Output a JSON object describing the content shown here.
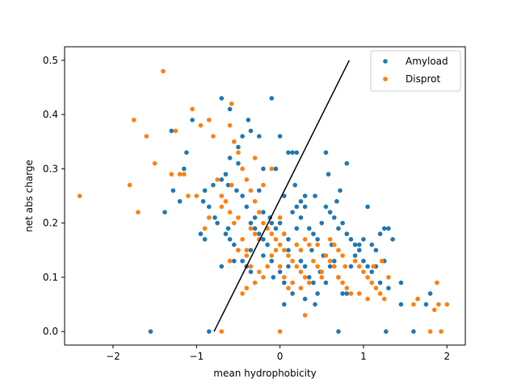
{
  "chart_data": {
    "type": "scatter",
    "xlabel": "mean hydrophobicity",
    "ylabel": "net abs charge",
    "xlim": [
      -2.58,
      2.22
    ],
    "ylim": [
      -0.025,
      0.525
    ],
    "xticks": [
      -2,
      -1,
      0,
      1,
      2
    ],
    "xtick_labels": [
      "−2",
      "−1",
      "0",
      "1",
      "2"
    ],
    "yticks": [
      0.0,
      0.1,
      0.2,
      0.3,
      0.4,
      0.5
    ],
    "ytick_labels": [
      "0.0",
      "0.1",
      "0.2",
      "0.3",
      "0.4",
      "0.5"
    ],
    "grid": false,
    "legend_position": "top-right",
    "decision_line": {
      "x": [
        -0.79,
        0.83
      ],
      "y": [
        0.0,
        0.5
      ],
      "color": "#000000"
    },
    "series": [
      {
        "name": "Amyload",
        "color": "#1f77b4",
        "points": [
          [
            -0.7,
            0.43
          ],
          [
            -0.6,
            0.41
          ],
          [
            -0.38,
            0.39
          ],
          [
            -0.1,
            0.43
          ],
          [
            -1.05,
            0.39
          ],
          [
            -1.3,
            0.37
          ],
          [
            -1.38,
            0.22
          ],
          [
            -1.28,
            0.26
          ],
          [
            -1.2,
            0.24
          ],
          [
            -1.15,
            0.3
          ],
          [
            -1.12,
            0.33
          ],
          [
            -0.55,
            0.35
          ],
          [
            -0.5,
            0.34
          ],
          [
            -0.6,
            0.32
          ],
          [
            -0.65,
            0.29
          ],
          [
            -0.62,
            0.27
          ],
          [
            -0.52,
            0.26
          ],
          [
            -0.45,
            0.25
          ],
          [
            -0.7,
            0.28
          ],
          [
            -0.8,
            0.27
          ],
          [
            -0.9,
            0.26
          ],
          [
            -0.92,
            0.24
          ],
          [
            -0.85,
            0.23
          ],
          [
            -0.78,
            0.21
          ],
          [
            -0.95,
            0.18
          ],
          [
            -0.9,
            0.17
          ],
          [
            -0.75,
            0.2
          ],
          [
            -0.65,
            0.18
          ],
          [
            -0.6,
            0.17
          ],
          [
            -0.55,
            0.16
          ],
          [
            -0.5,
            0.15
          ],
          [
            -0.45,
            0.13
          ],
          [
            -0.4,
            0.12
          ],
          [
            -0.35,
            0.11
          ],
          [
            -0.3,
            0.19
          ],
          [
            -0.25,
            0.18
          ],
          [
            -0.2,
            0.17
          ],
          [
            -0.15,
            0.16
          ],
          [
            -0.1,
            0.2
          ],
          [
            -0.05,
            0.19
          ],
          [
            0.0,
            0.2
          ],
          [
            0.05,
            0.18
          ],
          [
            0.1,
            0.17
          ],
          [
            0.15,
            0.22
          ],
          [
            0.2,
            0.23
          ],
          [
            0.25,
            0.21
          ],
          [
            0.3,
            0.23
          ],
          [
            0.35,
            0.19
          ],
          [
            0.4,
            0.18
          ],
          [
            0.45,
            0.17
          ],
          [
            0.5,
            0.2
          ],
          [
            0.55,
            0.23
          ],
          [
            0.6,
            0.22
          ],
          [
            0.65,
            0.21
          ],
          [
            0.7,
            0.19
          ],
          [
            0.75,
            0.2
          ],
          [
            0.8,
            0.18
          ],
          [
            0.85,
            0.17
          ],
          [
            0.9,
            0.16
          ],
          [
            0.95,
            0.15
          ],
          [
            1.0,
            0.17
          ],
          [
            1.05,
            0.23
          ],
          [
            1.1,
            0.16
          ],
          [
            1.15,
            0.15
          ],
          [
            1.2,
            0.18
          ],
          [
            1.25,
            0.19
          ],
          [
            1.3,
            0.19
          ],
          [
            1.35,
            0.17
          ],
          [
            1.25,
            0.13
          ],
          [
            1.3,
            0.08
          ],
          [
            1.45,
            0.09
          ],
          [
            1.45,
            0.05
          ],
          [
            1.65,
            0.06
          ],
          [
            1.75,
            0.05
          ],
          [
            1.8,
            0.07
          ],
          [
            1.6,
            0.0
          ],
          [
            1.27,
            0.0
          ],
          [
            0.7,
            0.0
          ],
          [
            -0.85,
            0.0
          ],
          [
            -1.55,
            0.0
          ],
          [
            0.0,
            0.36
          ],
          [
            0.1,
            0.33
          ],
          [
            0.15,
            0.33
          ],
          [
            0.2,
            0.33
          ],
          [
            0.55,
            0.33
          ],
          [
            0.58,
            0.29
          ],
          [
            0.8,
            0.31
          ],
          [
            0.72,
            0.26
          ],
          [
            0.42,
            0.25
          ],
          [
            0.3,
            0.25
          ],
          [
            0.25,
            0.24
          ],
          [
            0.05,
            0.25
          ],
          [
            -0.05,
            0.3
          ],
          [
            -0.2,
            0.3
          ],
          [
            -0.5,
            0.31
          ],
          [
            -0.25,
            0.36
          ],
          [
            -0.35,
            0.37
          ],
          [
            -0.45,
            0.36
          ],
          [
            -0.7,
            0.12
          ],
          [
            -0.55,
            0.13
          ],
          [
            -0.35,
            0.15
          ],
          [
            -0.2,
            0.14
          ],
          [
            -0.1,
            0.13
          ],
          [
            0.0,
            0.11
          ],
          [
            0.1,
            0.12
          ],
          [
            0.05,
            0.09
          ],
          [
            0.25,
            0.13
          ],
          [
            0.3,
            0.12
          ],
          [
            0.35,
            0.1
          ],
          [
            0.4,
            0.09
          ],
          [
            0.45,
            0.07
          ],
          [
            0.55,
            0.09
          ],
          [
            0.6,
            0.12
          ],
          [
            0.65,
            0.13
          ],
          [
            0.7,
            0.1
          ],
          [
            0.75,
            0.07
          ],
          [
            0.85,
            0.12
          ],
          [
            0.9,
            0.14
          ],
          [
            0.95,
            0.16
          ],
          [
            1.0,
            0.13
          ],
          [
            1.05,
            0.12
          ],
          [
            1.1,
            0.11
          ],
          [
            1.15,
            0.12
          ],
          [
            1.2,
            0.09
          ],
          [
            0.05,
            0.05
          ],
          [
            0.15,
            0.07
          ],
          [
            0.3,
            0.06
          ],
          [
            0.42,
            0.05
          ],
          [
            0.8,
            0.07
          ],
          [
            -0.2,
            0.22
          ],
          [
            -0.3,
            0.21
          ],
          [
            -0.35,
            0.2
          ],
          [
            -0.4,
            0.23
          ],
          [
            -0.12,
            0.21
          ],
          [
            0.2,
            0.19
          ],
          [
            0.48,
            0.11
          ],
          [
            0.52,
            0.14
          ],
          [
            0.62,
            0.16
          ],
          [
            -0.08,
            0.1
          ],
          [
            0.18,
            0.27
          ],
          [
            -0.25,
            0.26
          ],
          [
            0.68,
            0.24
          ],
          [
            0.38,
            0.15
          ],
          [
            0.1,
            0.15
          ],
          [
            -0.62,
            0.19
          ]
        ]
      },
      {
        "name": "Disprot",
        "color": "#ff7f0e",
        "points": [
          [
            -1.4,
            0.48
          ],
          [
            -1.75,
            0.39
          ],
          [
            -1.6,
            0.36
          ],
          [
            -1.5,
            0.31
          ],
          [
            -2.4,
            0.25
          ],
          [
            -1.8,
            0.27
          ],
          [
            -1.7,
            0.22
          ],
          [
            -1.3,
            0.29
          ],
          [
            -1.25,
            0.37
          ],
          [
            -1.2,
            0.29
          ],
          [
            -1.15,
            0.29
          ],
          [
            -1.1,
            0.25
          ],
          [
            -1.05,
            0.41
          ],
          [
            -0.95,
            0.38
          ],
          [
            -0.85,
            0.39
          ],
          [
            -0.8,
            0.36
          ],
          [
            -0.75,
            0.28
          ],
          [
            -0.7,
            0.25
          ],
          [
            -0.65,
            0.24
          ],
          [
            -0.6,
            0.38
          ],
          [
            -0.58,
            0.42
          ],
          [
            -0.55,
            0.35
          ],
          [
            -0.5,
            0.33
          ],
          [
            -0.45,
            0.3
          ],
          [
            -0.4,
            0.28
          ],
          [
            -0.35,
            0.26
          ],
          [
            -0.3,
            0.24
          ],
          [
            -0.25,
            0.22
          ],
          [
            -0.2,
            0.2
          ],
          [
            -0.15,
            0.19
          ],
          [
            -0.1,
            0.18
          ],
          [
            -0.05,
            0.17
          ],
          [
            0.0,
            0.16
          ],
          [
            0.05,
            0.15
          ],
          [
            0.1,
            0.14
          ],
          [
            0.15,
            0.13
          ],
          [
            0.2,
            0.12
          ],
          [
            0.25,
            0.11
          ],
          [
            0.3,
            0.1
          ],
          [
            0.35,
            0.09
          ],
          [
            0.4,
            0.13
          ],
          [
            0.45,
            0.12
          ],
          [
            0.5,
            0.11
          ],
          [
            0.55,
            0.14
          ],
          [
            0.6,
            0.13
          ],
          [
            0.65,
            0.12
          ],
          [
            0.7,
            0.1
          ],
          [
            0.75,
            0.09
          ],
          [
            0.8,
            0.08
          ],
          [
            0.85,
            0.07
          ],
          [
            0.9,
            0.13
          ],
          [
            0.95,
            0.12
          ],
          [
            1.0,
            0.11
          ],
          [
            1.05,
            0.1
          ],
          [
            1.1,
            0.09
          ],
          [
            1.15,
            0.08
          ],
          [
            1.2,
            0.07
          ],
          [
            1.25,
            0.06
          ],
          [
            1.3,
            0.1
          ],
          [
            1.6,
            0.05
          ],
          [
            1.65,
            0.06
          ],
          [
            1.8,
            0.0
          ],
          [
            1.85,
            0.04
          ],
          [
            1.9,
            0.05
          ],
          [
            1.88,
            0.09
          ],
          [
            2.0,
            0.05
          ],
          [
            1.93,
            0.0
          ],
          [
            0.0,
            0.0
          ],
          [
            0.3,
            0.03
          ],
          [
            -0.7,
            0.0
          ],
          [
            -0.4,
            0.08
          ],
          [
            -0.3,
            0.09
          ],
          [
            -0.45,
            0.07
          ],
          [
            -0.6,
            0.13
          ],
          [
            -0.5,
            0.15
          ],
          [
            -0.4,
            0.14
          ],
          [
            -0.35,
            0.12
          ],
          [
            -0.25,
            0.11
          ],
          [
            -0.2,
            0.1
          ],
          [
            -0.15,
            0.12
          ],
          [
            -0.1,
            0.14
          ],
          [
            -0.05,
            0.15
          ],
          [
            0.0,
            0.12
          ],
          [
            0.05,
            0.1
          ],
          [
            0.1,
            0.08
          ],
          [
            0.15,
            0.09
          ],
          [
            0.25,
            0.08
          ],
          [
            -0.7,
            0.23
          ],
          [
            -0.85,
            0.21
          ],
          [
            -0.9,
            0.19
          ],
          [
            -1.0,
            0.25
          ],
          [
            -0.3,
            0.18
          ],
          [
            -0.25,
            0.17
          ],
          [
            -0.35,
            0.19
          ],
          [
            -0.5,
            0.21
          ],
          [
            -0.55,
            0.2
          ],
          [
            -0.6,
            0.22
          ],
          [
            -0.2,
            0.27
          ],
          [
            -0.1,
            0.3
          ],
          [
            -0.3,
            0.32
          ],
          [
            -0.4,
            0.15
          ],
          [
            -0.45,
            0.17
          ],
          [
            0.0,
            0.21
          ],
          [
            0.05,
            0.18
          ],
          [
            0.2,
            0.16
          ],
          [
            0.25,
            0.15
          ],
          [
            0.3,
            0.17
          ],
          [
            0.35,
            0.16
          ],
          [
            0.6,
            0.17
          ],
          [
            0.65,
            0.16
          ],
          [
            0.7,
            0.15
          ],
          [
            0.75,
            0.14
          ],
          [
            0.78,
            0.12
          ],
          [
            0.95,
            0.07
          ],
          [
            1.05,
            0.06
          ],
          [
            1.12,
            0.12
          ],
          [
            1.22,
            0.13
          ],
          [
            0.45,
            0.16
          ],
          [
            0.5,
            0.1
          ],
          [
            -0.58,
            0.27
          ]
        ]
      }
    ]
  }
}
